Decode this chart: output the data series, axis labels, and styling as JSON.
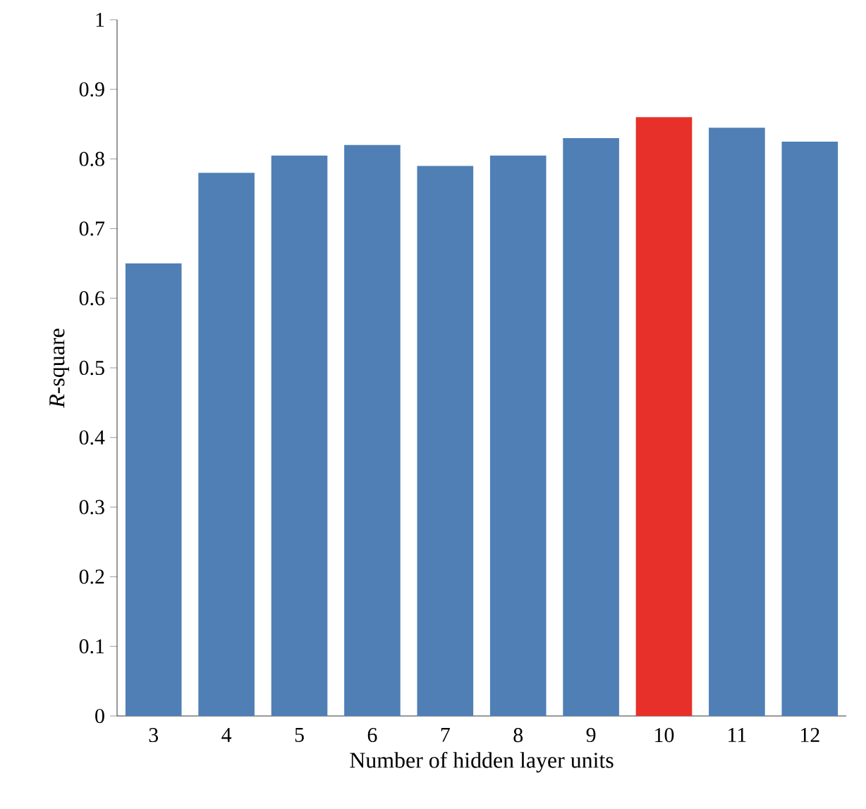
{
  "chart_data": {
    "type": "bar",
    "xlabel": "Number of hidden layer units",
    "ylabel": "*R*-square",
    "categories": [
      "3",
      "4",
      "5",
      "6",
      "7",
      "8",
      "9",
      "10",
      "11",
      "12"
    ],
    "values": [
      0.65,
      0.78,
      0.805,
      0.82,
      0.79,
      0.805,
      0.83,
      0.86,
      0.845,
      0.825
    ],
    "colors": [
      "#4f7fb5",
      "#4f7fb5",
      "#4f7fb5",
      "#4f7fb5",
      "#4f7fb5",
      "#4f7fb5",
      "#4f7fb5",
      "#e8302a",
      "#4f7fb5",
      "#4f7fb5"
    ],
    "ylim": [
      0,
      1
    ],
    "yticks": [
      0,
      0.1,
      0.2,
      0.3,
      0.4,
      0.5,
      0.6,
      0.7,
      0.8,
      0.9,
      1
    ]
  }
}
